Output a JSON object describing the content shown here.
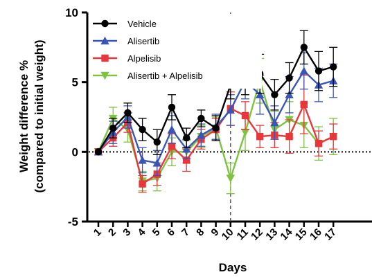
{
  "chart_data": {
    "type": "line",
    "xlabel": "Days",
    "ylabel_line1": "Weight difference %",
    "ylabel_line2": "(compared to initial weight)",
    "x": [
      1,
      2,
      3,
      4,
      5,
      6,
      7,
      8,
      9,
      10,
      11,
      12,
      13,
      14,
      15,
      16,
      17
    ],
    "x_tick_labels": [
      "1",
      "2",
      "3",
      "4",
      "5",
      "6",
      "7",
      "8",
      "9",
      "10",
      "11",
      "12",
      "13",
      "14",
      "15",
      "16",
      "17"
    ],
    "ylim": [
      -5,
      10
    ],
    "y_ticks": [
      -5,
      0,
      5,
      10
    ],
    "y_tick_labels": [
      "-5",
      "0",
      "5",
      "10"
    ],
    "reference_line_y": 0,
    "vertical_marker_x": 10,
    "legend_position": "top-left",
    "series": [
      {
        "name": "Vehicle",
        "color": "#000000",
        "marker": "circle",
        "values": [
          0.0,
          1.7,
          2.8,
          1.6,
          0.7,
          3.2,
          1.0,
          2.4,
          1.7,
          4.8,
          5.6,
          5.6,
          4.1,
          5.3,
          7.5,
          5.8,
          6.1
        ],
        "errors": [
          0.1,
          0.7,
          0.7,
          0.8,
          0.9,
          0.9,
          0.7,
          0.6,
          0.9,
          1.0,
          1.5,
          1.4,
          1.1,
          1.1,
          1.2,
          1.4,
          1.4
        ]
      },
      {
        "name": "Alisertib",
        "color": "#3B55B5",
        "marker": "triangle-up",
        "values": [
          0.0,
          1.4,
          2.5,
          -0.6,
          -0.8,
          1.6,
          0.2,
          1.2,
          1.8,
          3.0,
          5.1,
          4.1,
          2.1,
          4.1,
          5.8,
          4.8,
          5.1
        ],
        "errors": [
          0.1,
          0.8,
          0.8,
          0.9,
          0.9,
          1.0,
          0.7,
          0.8,
          0.9,
          1.1,
          1.3,
          1.4,
          1.2,
          1.3,
          1.3,
          1.2,
          1.2
        ]
      },
      {
        "name": "Alpelisib",
        "color": "#E8373A",
        "marker": "square",
        "values": [
          0.0,
          1.0,
          2.1,
          -2.3,
          -1.6,
          0.4,
          -0.6,
          0.9,
          1.6,
          3.1,
          2.6,
          1.1,
          1.2,
          1.1,
          3.4,
          0.6,
          1.1
        ],
        "errors": [
          0.1,
          0.6,
          0.7,
          0.6,
          0.8,
          0.9,
          0.8,
          0.7,
          0.8,
          1.2,
          1.0,
          0.8,
          0.9,
          1.2,
          2.1,
          0.9,
          0.9
        ]
      },
      {
        "name": "Alisertib + Alpelisib",
        "color": "#7EC242",
        "marker": "triangle-down",
        "values": [
          0.0,
          2.4,
          1.6,
          -2.1,
          -1.9,
          0.0,
          0.0,
          1.1,
          1.7,
          -1.9,
          1.4,
          5.1,
          1.6,
          2.3,
          1.9,
          0.6,
          1.1
        ],
        "errors": [
          0.1,
          0.8,
          0.9,
          0.7,
          0.9,
          1.0,
          0.8,
          0.8,
          0.8,
          1.1,
          1.3,
          1.6,
          1.3,
          1.3,
          1.6,
          1.2,
          1.3
        ]
      }
    ]
  }
}
